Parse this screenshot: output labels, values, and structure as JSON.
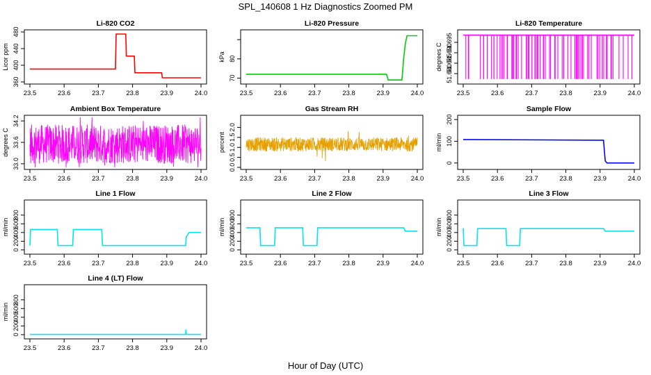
{
  "figure": {
    "title": "SPL_140608  1 Hz Diagnostics Zoomed PM",
    "xlabel": "Hour of Day (UTC)"
  },
  "chart_data": [
    {
      "type": "line",
      "title": "Li-820 CO2",
      "ylabel": "Licor ppm",
      "color": "#ff0000",
      "xlim": [
        23.5,
        24.0
      ],
      "ylim": [
        360,
        480
      ],
      "x_ticks": [
        "23.5",
        "23.6",
        "23.7",
        "23.8",
        "23.9",
        "24.0"
      ],
      "y_ticks": [
        360,
        400,
        440,
        480
      ],
      "series": [
        {
          "x": [
            23.5,
            23.75,
            23.752,
            23.78,
            23.782,
            23.805,
            23.807,
            23.84,
            23.842,
            23.885,
            23.887,
            23.96,
            23.962,
            24.0
          ],
          "y": [
            391,
            391,
            475,
            475,
            422,
            422,
            382,
            382,
            382,
            382,
            370,
            370,
            370,
            370
          ]
        }
      ]
    },
    {
      "type": "line",
      "title": "Li-820 Pressure",
      "ylabel": "kPa",
      "color": "#00cc00",
      "xlim": [
        23.5,
        24.0
      ],
      "ylim": [
        68,
        94
      ],
      "x_ticks": [
        "23.5",
        "23.6",
        "23.7",
        "23.8",
        "23.9",
        "24.0"
      ],
      "y_ticks": [
        70,
        80
      ],
      "y_tick_positions": [
        70,
        80,
        90
      ],
      "y_tick_labels": [
        "70",
        "80",
        ""
      ],
      "series": [
        {
          "x": [
            23.5,
            23.91,
            23.915,
            23.955,
            23.96,
            23.965,
            23.97,
            24.0
          ],
          "y": [
            72,
            72,
            69,
            69,
            80,
            88,
            92,
            92
          ]
        }
      ]
    },
    {
      "type": "line",
      "title": "Li-820 Temperature",
      "ylabel": "degrees C",
      "color": "#ff00ff",
      "xlim": [
        23.5,
        24.0
      ],
      "ylim": [
        51.676,
        51.7
      ],
      "x_ticks": [
        "23.5",
        "23.6",
        "23.7",
        "23.8",
        "23.9",
        "24.0"
      ],
      "y_ticks": [
        "51.680",
        "51.685",
        "51.690",
        "51.695"
      ],
      "y_tick_values": [
        51.68,
        51.685,
        51.69,
        51.695
      ],
      "series": [
        {
          "name": "",
          "high": 51.6985,
          "low": 51.6774,
          "n_drops": 80
        }
      ]
    },
    {
      "type": "line",
      "title": "Ambient Box Temperature",
      "ylabel": "degrees C",
      "color": "#ff00ff",
      "xlim": [
        23.5,
        24.0
      ],
      "ylim": [
        32.9,
        34.3
      ],
      "x_ticks": [
        "23.5",
        "23.6",
        "23.7",
        "23.8",
        "23.9",
        "24.0"
      ],
      "y_ticks": [
        "33.0",
        "33.6",
        "34.2"
      ],
      "y_tick_values": [
        33.0,
        33.6,
        34.2
      ],
      "series": [
        {
          "center": 33.55,
          "spread": 0.55
        }
      ]
    },
    {
      "type": "line",
      "title": "Gas Stream RH",
      "ylabel": "percent",
      "color": "#e6a000",
      "xlim": [
        23.5,
        24.0
      ],
      "ylim": [
        0,
        2.5
      ],
      "x_ticks": [
        "23.5",
        "23.6",
        "23.7",
        "23.8",
        "23.9",
        "24.0"
      ],
      "y_ticks": [
        "0.0",
        "0.5",
        "1.0",
        "1.5",
        "2.0"
      ],
      "y_tick_values": [
        0,
        0.5,
        1.0,
        1.5,
        2.0
      ],
      "series": [
        {
          "center": 1.15,
          "spread": 0.35
        }
      ]
    },
    {
      "type": "line",
      "title": "Sample Flow",
      "ylabel": "ml/min",
      "color": "#0000ff",
      "xlim": [
        23.5,
        24.0
      ],
      "ylim": [
        -20,
        210
      ],
      "x_ticks": [
        "23.5",
        "23.6",
        "23.7",
        "23.8",
        "23.9",
        "24.0"
      ],
      "y_ticks": [
        0,
        100,
        200
      ],
      "series": [
        {
          "x": [
            23.5,
            23.91,
            23.915,
            23.92,
            24.0
          ],
          "y": [
            108,
            105,
            10,
            0,
            0
          ]
        }
      ]
    },
    {
      "type": "line",
      "title": "Line 1 Flow",
      "ylabel": "ml/min",
      "color": "#00e5ee",
      "xlim": [
        23.5,
        24.0
      ],
      "ylim": [
        -50,
        1100
      ],
      "x_ticks": [
        "23.5",
        "23.6",
        "23.7",
        "23.8",
        "23.9",
        "24.0"
      ],
      "y_ticks": [
        0,
        200,
        400,
        600,
        800
      ],
      "series": [
        {
          "x": [
            23.5,
            23.502,
            23.58,
            23.582,
            23.625,
            23.627,
            23.71,
            23.712,
            23.955,
            23.957,
            23.965,
            24.0
          ],
          "y": [
            100,
            470,
            470,
            100,
            100,
            470,
            470,
            100,
            100,
            300,
            400,
            400
          ]
        }
      ]
    },
    {
      "type": "line",
      "title": "Line 2 Flow",
      "ylabel": "ml/min",
      "color": "#00e5ee",
      "xlim": [
        23.5,
        24.0
      ],
      "ylim": [
        -50,
        1100
      ],
      "x_ticks": [
        "23.5",
        "23.6",
        "23.7",
        "23.8",
        "23.9",
        "24.0"
      ],
      "y_ticks": [
        0,
        200,
        400,
        600,
        800
      ],
      "series": [
        {
          "x": [
            23.5,
            23.54,
            23.542,
            23.583,
            23.585,
            23.665,
            23.667,
            23.707,
            23.709,
            23.96,
            23.965,
            24.0
          ],
          "y": [
            510,
            510,
            100,
            100,
            510,
            510,
            100,
            100,
            510,
            510,
            430,
            430
          ]
        }
      ]
    },
    {
      "type": "line",
      "title": "Line 3 Flow",
      "ylabel": "ml/min",
      "color": "#00e5ee",
      "xlim": [
        23.5,
        24.0
      ],
      "ylim": [
        -50,
        1100
      ],
      "x_ticks": [
        "23.5",
        "23.6",
        "23.7",
        "23.8",
        "23.9",
        "24.0"
      ],
      "y_ticks": [
        0,
        200,
        400,
        600,
        800
      ],
      "series": [
        {
          "x": [
            23.5,
            23.502,
            23.54,
            23.542,
            23.625,
            23.627,
            23.665,
            23.667,
            23.91,
            23.915,
            24.0
          ],
          "y": [
            500,
            100,
            100,
            490,
            490,
            100,
            100,
            490,
            490,
            430,
            430
          ]
        }
      ]
    },
    {
      "type": "line",
      "title": "Line 4 (LT) Flow",
      "ylabel": "ml/min",
      "color": "#00e5ee",
      "xlim": [
        23.5,
        24.0
      ],
      "ylim": [
        -50,
        1100
      ],
      "x_ticks": [
        "23.5",
        "23.6",
        "23.7",
        "23.8",
        "23.9",
        "24.0"
      ],
      "y_ticks": [
        0,
        200,
        400,
        600,
        800
      ],
      "series": [
        {
          "x": [
            23.5,
            23.955,
            23.956,
            23.957,
            23.958,
            24.0
          ],
          "y": [
            5,
            5,
            120,
            5,
            5,
            5
          ]
        }
      ]
    }
  ]
}
